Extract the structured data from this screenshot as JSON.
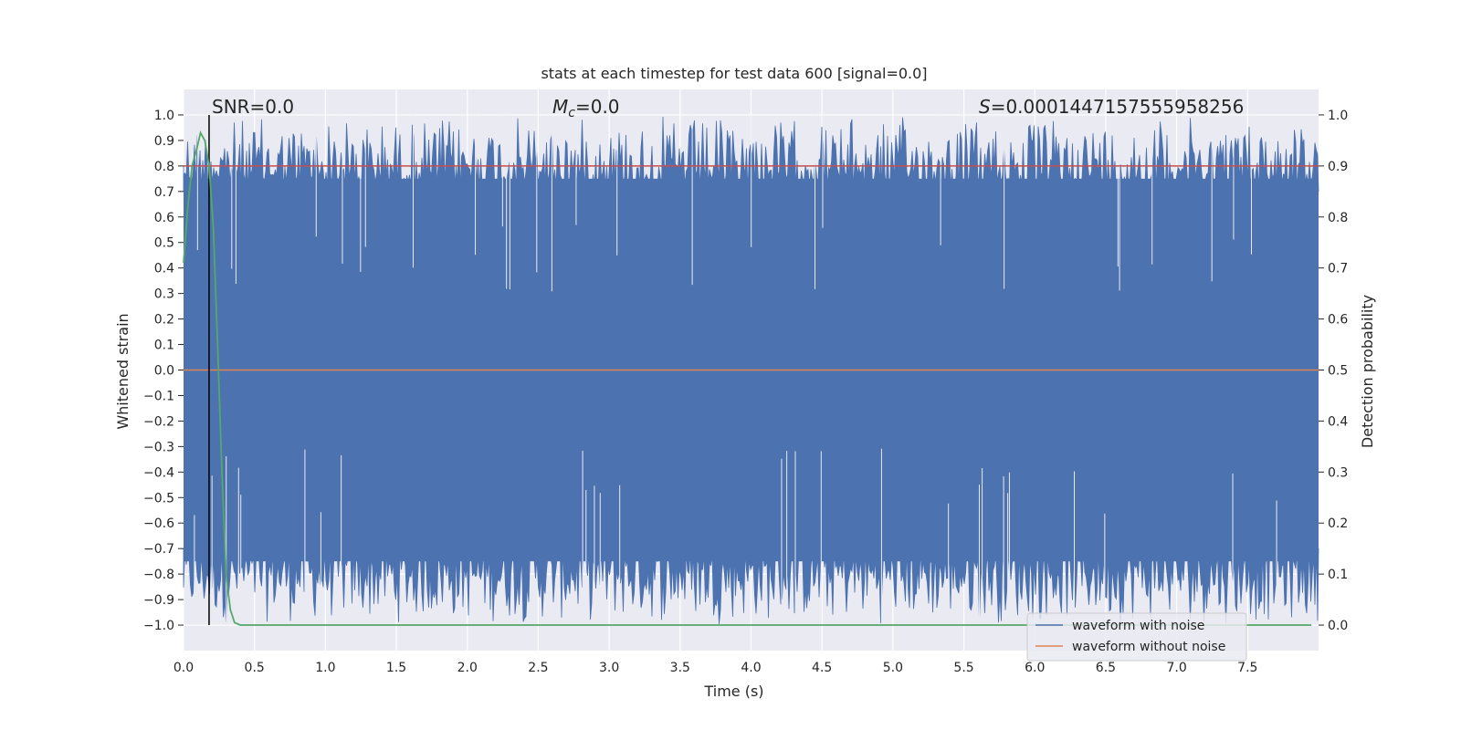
{
  "chart_data": {
    "type": "line",
    "title": "stats at each timestep for test data 600 [signal=0.0]",
    "xlabel": "Time (s)",
    "ylabel": "Whitened strain",
    "ylabel_right": "Detection probability",
    "xlim": [
      0,
      8
    ],
    "ylim": [
      -1.1,
      1.1
    ],
    "ylim_right": [
      -0.05,
      1.05
    ],
    "x_ticks": [
      0.0,
      0.5,
      1.0,
      1.5,
      2.0,
      2.5,
      3.0,
      3.5,
      4.0,
      4.5,
      5.0,
      5.5,
      6.0,
      6.5,
      7.0,
      7.5
    ],
    "x_tick_labels": [
      "0.0",
      "0.5",
      "1.0",
      "1.5",
      "2.0",
      "2.5",
      "3.0",
      "3.5",
      "4.0",
      "4.5",
      "5.0",
      "5.5",
      "6.0",
      "6.5",
      "7.0",
      "7.5"
    ],
    "y_ticks": [
      1.0,
      0.9,
      0.8,
      0.7,
      0.6,
      0.5,
      0.4,
      0.3,
      0.2,
      0.1,
      0.0,
      -0.1,
      -0.2,
      -0.3,
      -0.4,
      -0.5,
      -0.6,
      -0.7,
      -0.8,
      -0.9,
      -1.0
    ],
    "y_tick_labels": [
      "1.0",
      "0.9",
      "0.8",
      "0.7",
      "0.6",
      "0.5",
      "0.4",
      "0.3",
      "0.2",
      "0.1",
      "0.0",
      "−0.1",
      "−0.2",
      "−0.3",
      "−0.4",
      "−0.5",
      "−0.6",
      "−0.7",
      "−0.8",
      "−0.9",
      "−1.0"
    ],
    "y_right_ticks": [
      1.0,
      0.9,
      0.8,
      0.7,
      0.6,
      0.5,
      0.4,
      0.3,
      0.2,
      0.1,
      0.0
    ],
    "y_right_tick_labels": [
      "1.0",
      "0.9",
      "0.8",
      "0.7",
      "0.6",
      "0.5",
      "0.4",
      "0.3",
      "0.2",
      "0.1",
      "0.0"
    ],
    "grid": true,
    "series": [
      {
        "name": "waveform with noise",
        "color": "#4c72b0",
        "description_range": [
          -1.0,
          1.0
        ]
      },
      {
        "name": "waveform without noise",
        "color": "#dd8452",
        "values_constant": 0.0
      },
      {
        "color": "#55a868",
        "axis": "right",
        "x": [
          0.0,
          0.03,
          0.06,
          0.09,
          0.12,
          0.15,
          0.18,
          0.21,
          0.24,
          0.27,
          0.3,
          0.33,
          0.36,
          0.4,
          1.0,
          2.0,
          3.0,
          4.0,
          5.0,
          6.0,
          7.0,
          7.95
        ],
        "values": [
          0.71,
          0.82,
          0.9,
          0.93,
          0.965,
          0.95,
          0.9,
          0.78,
          0.55,
          0.3,
          0.1,
          0.03,
          0.005,
          0.0,
          0.0,
          0.0,
          0.0,
          0.0,
          0.0,
          0.0,
          0.0,
          0.0
        ]
      }
    ],
    "threshold": {
      "axis": "right",
      "value": 0.9,
      "color": "#c44e52"
    },
    "vline": {
      "x": 0.18,
      "color": "#000000",
      "y_range": [
        -1.0,
        1.0
      ]
    },
    "annotations": {
      "snr": "SNR=0.0",
      "mc_symbol": "M",
      "mc_subscript": "c",
      "mc_value": "=0.0",
      "s_symbol": "S",
      "s_value": "=0.0001447157555958256"
    },
    "legend_position": "lower-right"
  }
}
